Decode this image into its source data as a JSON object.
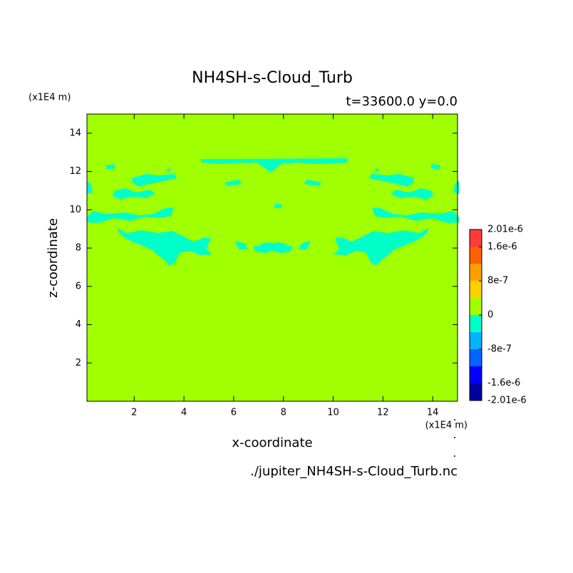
{
  "chart_data": {
    "type": "contour",
    "title": "NH4SH-s-Cloud_Turb",
    "subtitle": "t=33600.0 y=0.0",
    "x_label": "x-coordinate",
    "y_label": "z-coordinate",
    "x_unit": "(x1E4 m)",
    "y_unit": "(x1E4 m)",
    "source": "./jupiter_NH4SH-s-Cloud_Turb.nc",
    "xlim": [
      0.1,
      15
    ],
    "ylim": [
      0,
      15
    ],
    "xticks": [
      2,
      4,
      6,
      8,
      10,
      12,
      14
    ],
    "yticks": [
      2,
      4,
      6,
      8,
      10,
      12,
      14
    ],
    "colorbar": {
      "levels": [
        -2.01e-06,
        -1.6e-06,
        -1.2e-06,
        -8e-07,
        -4e-07,
        0,
        4e-07,
        8e-07,
        1.2e-06,
        1.6e-06,
        2.01e-06
      ],
      "colors": [
        "#0000a0",
        "#0000ff",
        "#0064ff",
        "#00b4ff",
        "#00ffc8",
        "#a0ff00",
        "#ffd200",
        "#ffa000",
        "#ff6000",
        "#ff3a3a"
      ],
      "ticks": [
        {
          "value": 2.01e-06,
          "label": "2.01e-6"
        },
        {
          "value": 1.6e-06,
          "label": "1.6e-6"
        },
        {
          "value": 8e-07,
          "label": "8e-7"
        },
        0,
        {
          "value": -8e-07,
          "label": "-8e-7"
        },
        {
          "value": -1.6e-06,
          "label": "-1.6e-6"
        },
        {
          "value": -2.01e-06,
          "label": "-2.01e-6"
        }
      ]
    }
  }
}
